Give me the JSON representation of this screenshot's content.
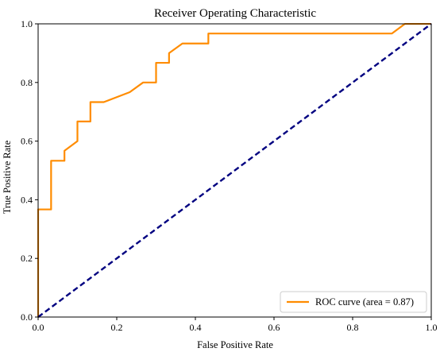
{
  "chart_data": {
    "type": "line",
    "title": "Receiver Operating Characteristic",
    "xlabel": "False Positive Rate",
    "ylabel": "True Positive Rate",
    "xlim": [
      0.0,
      1.0
    ],
    "ylim": [
      0.0,
      1.0
    ],
    "xticks": [
      "0.0",
      "0.2",
      "0.4",
      "0.6",
      "0.8",
      "1.0"
    ],
    "yticks": [
      "0.0",
      "0.2",
      "0.4",
      "0.6",
      "0.8",
      "1.0"
    ],
    "grid": false,
    "legend_position": "lower right",
    "series": [
      {
        "name": "ROC curve (area = 0.87)",
        "color": "#ff8c00",
        "style": "solid",
        "x": [
          0.0,
          0.0,
          0.033,
          0.033,
          0.067,
          0.067,
          0.1,
          0.1,
          0.133,
          0.133,
          0.167,
          0.233,
          0.267,
          0.3,
          0.3,
          0.333,
          0.333,
          0.367,
          0.433,
          0.433,
          0.9,
          0.933,
          1.0
        ],
        "y": [
          0.0,
          0.367,
          0.367,
          0.533,
          0.533,
          0.567,
          0.6,
          0.667,
          0.667,
          0.733,
          0.733,
          0.767,
          0.8,
          0.8,
          0.867,
          0.867,
          0.9,
          0.933,
          0.933,
          0.967,
          0.967,
          1.0,
          1.0
        ]
      },
      {
        "color": "#000080",
        "style": "dashed",
        "x": [
          0.0,
          1.0
        ],
        "y": [
          0.0,
          1.0
        ]
      }
    ]
  }
}
